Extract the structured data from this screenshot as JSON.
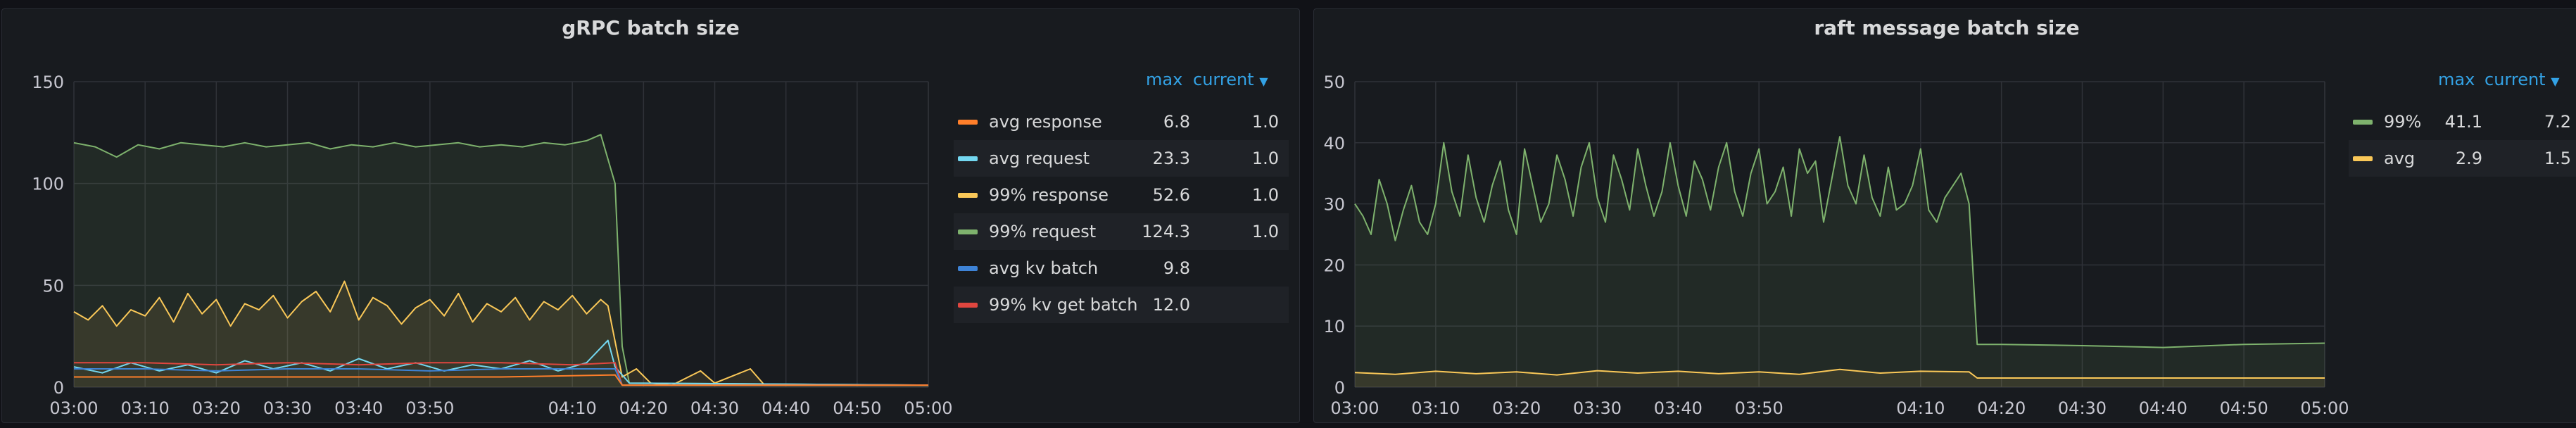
{
  "colors": {
    "background": "#111217",
    "panel": "#181b1f",
    "grid": "#2f3238",
    "axis_text": "#c7c7d0",
    "legend_header": "#33a2e5"
  },
  "panels": [
    {
      "title": "gRPC batch size",
      "legend": {
        "max_label": "max",
        "current_label": "current",
        "sort_icon": "chevron-down-icon",
        "rows": [
          {
            "name": "avg response",
            "color": "#ff7f2a",
            "max": "6.8",
            "current": "1.0"
          },
          {
            "name": "avg request",
            "color": "#73d7f0",
            "max": "23.3",
            "current": "1.0"
          },
          {
            "name": "99% response",
            "color": "#fac858",
            "max": "52.6",
            "current": "1.0"
          },
          {
            "name": "99% request",
            "color": "#7eb26d",
            "max": "124.3",
            "current": "1.0"
          },
          {
            "name": "avg kv batch",
            "color": "#3e83d6",
            "max": "9.8",
            "current": ""
          },
          {
            "name": "99% kv get batch",
            "color": "#e0463f",
            "max": "12.0",
            "current": ""
          }
        ]
      }
    },
    {
      "title": "raft message batch size",
      "legend": {
        "max_label": "max",
        "current_label": "current",
        "sort_icon": "chevron-down-icon",
        "rows": [
          {
            "name": "99%",
            "color": "#7eb26d",
            "max": "41.1",
            "current": "7.2"
          },
          {
            "name": "avg",
            "color": "#fac858",
            "max": "2.9",
            "current": "1.5"
          }
        ]
      }
    }
  ],
  "chart_data": [
    {
      "type": "line",
      "title": "gRPC batch size",
      "x_ticks": [
        "03:00",
        "03:10",
        "03:20",
        "03:30",
        "03:40",
        "03:50",
        "04:10",
        "04:20",
        "04:30",
        "04:40",
        "04:50",
        "05:00"
      ],
      "x_tick_minutes": [
        0,
        10,
        20,
        30,
        40,
        50,
        70,
        80,
        90,
        100,
        110,
        120
      ],
      "x_range": [
        "03:00",
        "05:00"
      ],
      "y_ticks": [
        "0",
        "50",
        "100",
        "150"
      ],
      "ylim": [
        0,
        150
      ],
      "grid": true,
      "legend_position": "right",
      "series": [
        {
          "name": "99% request",
          "color": "#7eb26d",
          "fill": true,
          "points": [
            [
              0,
              120
            ],
            [
              3,
              118
            ],
            [
              6,
              113
            ],
            [
              9,
              119
            ],
            [
              12,
              117
            ],
            [
              15,
              120
            ],
            [
              18,
              119
            ],
            [
              21,
              118
            ],
            [
              24,
              120
            ],
            [
              27,
              118
            ],
            [
              30,
              119
            ],
            [
              33,
              120
            ],
            [
              36,
              117
            ],
            [
              39,
              119
            ],
            [
              42,
              118
            ],
            [
              45,
              120
            ],
            [
              48,
              118
            ],
            [
              51,
              119
            ],
            [
              54,
              120
            ],
            [
              57,
              118
            ],
            [
              60,
              119
            ],
            [
              63,
              118
            ],
            [
              66,
              120
            ],
            [
              69,
              119
            ],
            [
              72,
              121
            ],
            [
              74,
              124
            ],
            [
              76,
              100
            ],
            [
              77,
              20
            ],
            [
              78,
              2
            ],
            [
              120,
              1
            ]
          ]
        },
        {
          "name": "99% response",
          "color": "#fac858",
          "fill": true,
          "points": [
            [
              0,
              37
            ],
            [
              2,
              33
            ],
            [
              4,
              40
            ],
            [
              6,
              30
            ],
            [
              8,
              38
            ],
            [
              10,
              35
            ],
            [
              12,
              44
            ],
            [
              14,
              32
            ],
            [
              16,
              46
            ],
            [
              18,
              36
            ],
            [
              20,
              43
            ],
            [
              22,
              30
            ],
            [
              24,
              41
            ],
            [
              26,
              38
            ],
            [
              28,
              45
            ],
            [
              30,
              34
            ],
            [
              32,
              42
            ],
            [
              34,
              47
            ],
            [
              36,
              37
            ],
            [
              38,
              52
            ],
            [
              40,
              33
            ],
            [
              42,
              44
            ],
            [
              44,
              40
            ],
            [
              46,
              31
            ],
            [
              48,
              39
            ],
            [
              50,
              43
            ],
            [
              52,
              35
            ],
            [
              54,
              46
            ],
            [
              56,
              32
            ],
            [
              58,
              41
            ],
            [
              60,
              37
            ],
            [
              62,
              44
            ],
            [
              64,
              33
            ],
            [
              66,
              42
            ],
            [
              68,
              38
            ],
            [
              70,
              45
            ],
            [
              72,
              36
            ],
            [
              74,
              43
            ],
            [
              75,
              40
            ],
            [
              77,
              5
            ],
            [
              79,
              9
            ],
            [
              81,
              2
            ],
            [
              84,
              1
            ],
            [
              88,
              8
            ],
            [
              90,
              2
            ],
            [
              95,
              9
            ],
            [
              97,
              1
            ],
            [
              120,
              1
            ]
          ]
        },
        {
          "name": "avg request",
          "color": "#73d7f0",
          "points": [
            [
              0,
              10
            ],
            [
              4,
              7
            ],
            [
              8,
              12
            ],
            [
              12,
              8
            ],
            [
              16,
              11
            ],
            [
              20,
              7
            ],
            [
              24,
              13
            ],
            [
              28,
              9
            ],
            [
              32,
              12
            ],
            [
              36,
              8
            ],
            [
              40,
              14
            ],
            [
              44,
              9
            ],
            [
              48,
              12
            ],
            [
              52,
              8
            ],
            [
              56,
              11
            ],
            [
              60,
              9
            ],
            [
              64,
              13
            ],
            [
              68,
              8
            ],
            [
              72,
              12
            ],
            [
              75,
              23
            ],
            [
              76,
              10
            ],
            [
              78,
              2
            ],
            [
              120,
              1
            ]
          ]
        },
        {
          "name": "99% kv get batch",
          "color": "#e0463f",
          "points": [
            [
              0,
              12
            ],
            [
              10,
              12
            ],
            [
              20,
              11
            ],
            [
              30,
              12
            ],
            [
              40,
              11
            ],
            [
              50,
              12
            ],
            [
              60,
              12
            ],
            [
              70,
              11
            ],
            [
              76,
              12
            ],
            [
              77,
              1
            ],
            [
              120,
              1
            ]
          ]
        },
        {
          "name": "avg kv batch",
          "color": "#3e83d6",
          "points": [
            [
              0,
              9
            ],
            [
              10,
              9
            ],
            [
              20,
              8
            ],
            [
              30,
              9
            ],
            [
              40,
              9
            ],
            [
              50,
              8
            ],
            [
              60,
              9
            ],
            [
              70,
              9
            ],
            [
              76,
              9
            ],
            [
              77,
              1
            ],
            [
              120,
              1
            ]
          ]
        },
        {
          "name": "avg response",
          "color": "#ff7f2a",
          "points": [
            [
              0,
              5
            ],
            [
              20,
              5
            ],
            [
              40,
              5
            ],
            [
              60,
              5
            ],
            [
              76,
              6
            ],
            [
              77,
              1
            ],
            [
              120,
              1
            ]
          ]
        }
      ]
    },
    {
      "type": "line",
      "title": "raft message batch size",
      "x_ticks": [
        "03:00",
        "03:10",
        "03:20",
        "03:30",
        "03:40",
        "03:50",
        "04:10",
        "04:20",
        "04:30",
        "04:40",
        "04:50",
        "05:00"
      ],
      "x_tick_minutes": [
        0,
        10,
        20,
        30,
        40,
        50,
        70,
        80,
        90,
        100,
        110,
        120
      ],
      "x_range": [
        "03:00",
        "05:00"
      ],
      "y_ticks": [
        "0",
        "10",
        "20",
        "30",
        "40",
        "50"
      ],
      "ylim": [
        0,
        50
      ],
      "grid": true,
      "legend_position": "right",
      "series": [
        {
          "name": "99%",
          "color": "#7eb26d",
          "fill": true,
          "points": [
            [
              0,
              30
            ],
            [
              1,
              28
            ],
            [
              2,
              25
            ],
            [
              3,
              34
            ],
            [
              4,
              30
            ],
            [
              5,
              24
            ],
            [
              6,
              29
            ],
            [
              7,
              33
            ],
            [
              8,
              27
            ],
            [
              9,
              25
            ],
            [
              10,
              30
            ],
            [
              11,
              40
            ],
            [
              12,
              32
            ],
            [
              13,
              28
            ],
            [
              14,
              38
            ],
            [
              15,
              31
            ],
            [
              16,
              27
            ],
            [
              17,
              33
            ],
            [
              18,
              37
            ],
            [
              19,
              29
            ],
            [
              20,
              25
            ],
            [
              21,
              39
            ],
            [
              22,
              33
            ],
            [
              23,
              27
            ],
            [
              24,
              30
            ],
            [
              25,
              38
            ],
            [
              26,
              34
            ],
            [
              27,
              28
            ],
            [
              28,
              36
            ],
            [
              29,
              40
            ],
            [
              30,
              31
            ],
            [
              31,
              27
            ],
            [
              32,
              38
            ],
            [
              33,
              34
            ],
            [
              34,
              29
            ],
            [
              35,
              39
            ],
            [
              36,
              33
            ],
            [
              37,
              28
            ],
            [
              38,
              32
            ],
            [
              39,
              40
            ],
            [
              40,
              33
            ],
            [
              41,
              28
            ],
            [
              42,
              37
            ],
            [
              43,
              34
            ],
            [
              44,
              29
            ],
            [
              45,
              36
            ],
            [
              46,
              40
            ],
            [
              47,
              32
            ],
            [
              48,
              28
            ],
            [
              49,
              35
            ],
            [
              50,
              39
            ],
            [
              51,
              30
            ],
            [
              52,
              32
            ],
            [
              53,
              36
            ],
            [
              54,
              28
            ],
            [
              55,
              39
            ],
            [
              56,
              35
            ],
            [
              57,
              37
            ],
            [
              58,
              27
            ],
            [
              59,
              34
            ],
            [
              60,
              41
            ],
            [
              61,
              33
            ],
            [
              62,
              30
            ],
            [
              63,
              38
            ],
            [
              64,
              31
            ],
            [
              65,
              28
            ],
            [
              66,
              36
            ],
            [
              67,
              29
            ],
            [
              68,
              30
            ],
            [
              69,
              33
            ],
            [
              70,
              39
            ],
            [
              71,
              29
            ],
            [
              72,
              27
            ],
            [
              73,
              31
            ],
            [
              74,
              33
            ],
            [
              75,
              35
            ],
            [
              76,
              30
            ],
            [
              77,
              7
            ],
            [
              80,
              7
            ],
            [
              90,
              6.8
            ],
            [
              100,
              6.5
            ],
            [
              110,
              7
            ],
            [
              120,
              7.2
            ]
          ]
        },
        {
          "name": "avg",
          "color": "#fac858",
          "fill": true,
          "points": [
            [
              0,
              2.4
            ],
            [
              5,
              2.1
            ],
            [
              10,
              2.6
            ],
            [
              15,
              2.2
            ],
            [
              20,
              2.5
            ],
            [
              25,
              2.0
            ],
            [
              30,
              2.7
            ],
            [
              35,
              2.3
            ],
            [
              40,
              2.6
            ],
            [
              45,
              2.2
            ],
            [
              50,
              2.5
            ],
            [
              55,
              2.1
            ],
            [
              60,
              2.9
            ],
            [
              65,
              2.3
            ],
            [
              70,
              2.6
            ],
            [
              76,
              2.5
            ],
            [
              77,
              1.5
            ],
            [
              120,
              1.5
            ]
          ]
        }
      ]
    }
  ]
}
